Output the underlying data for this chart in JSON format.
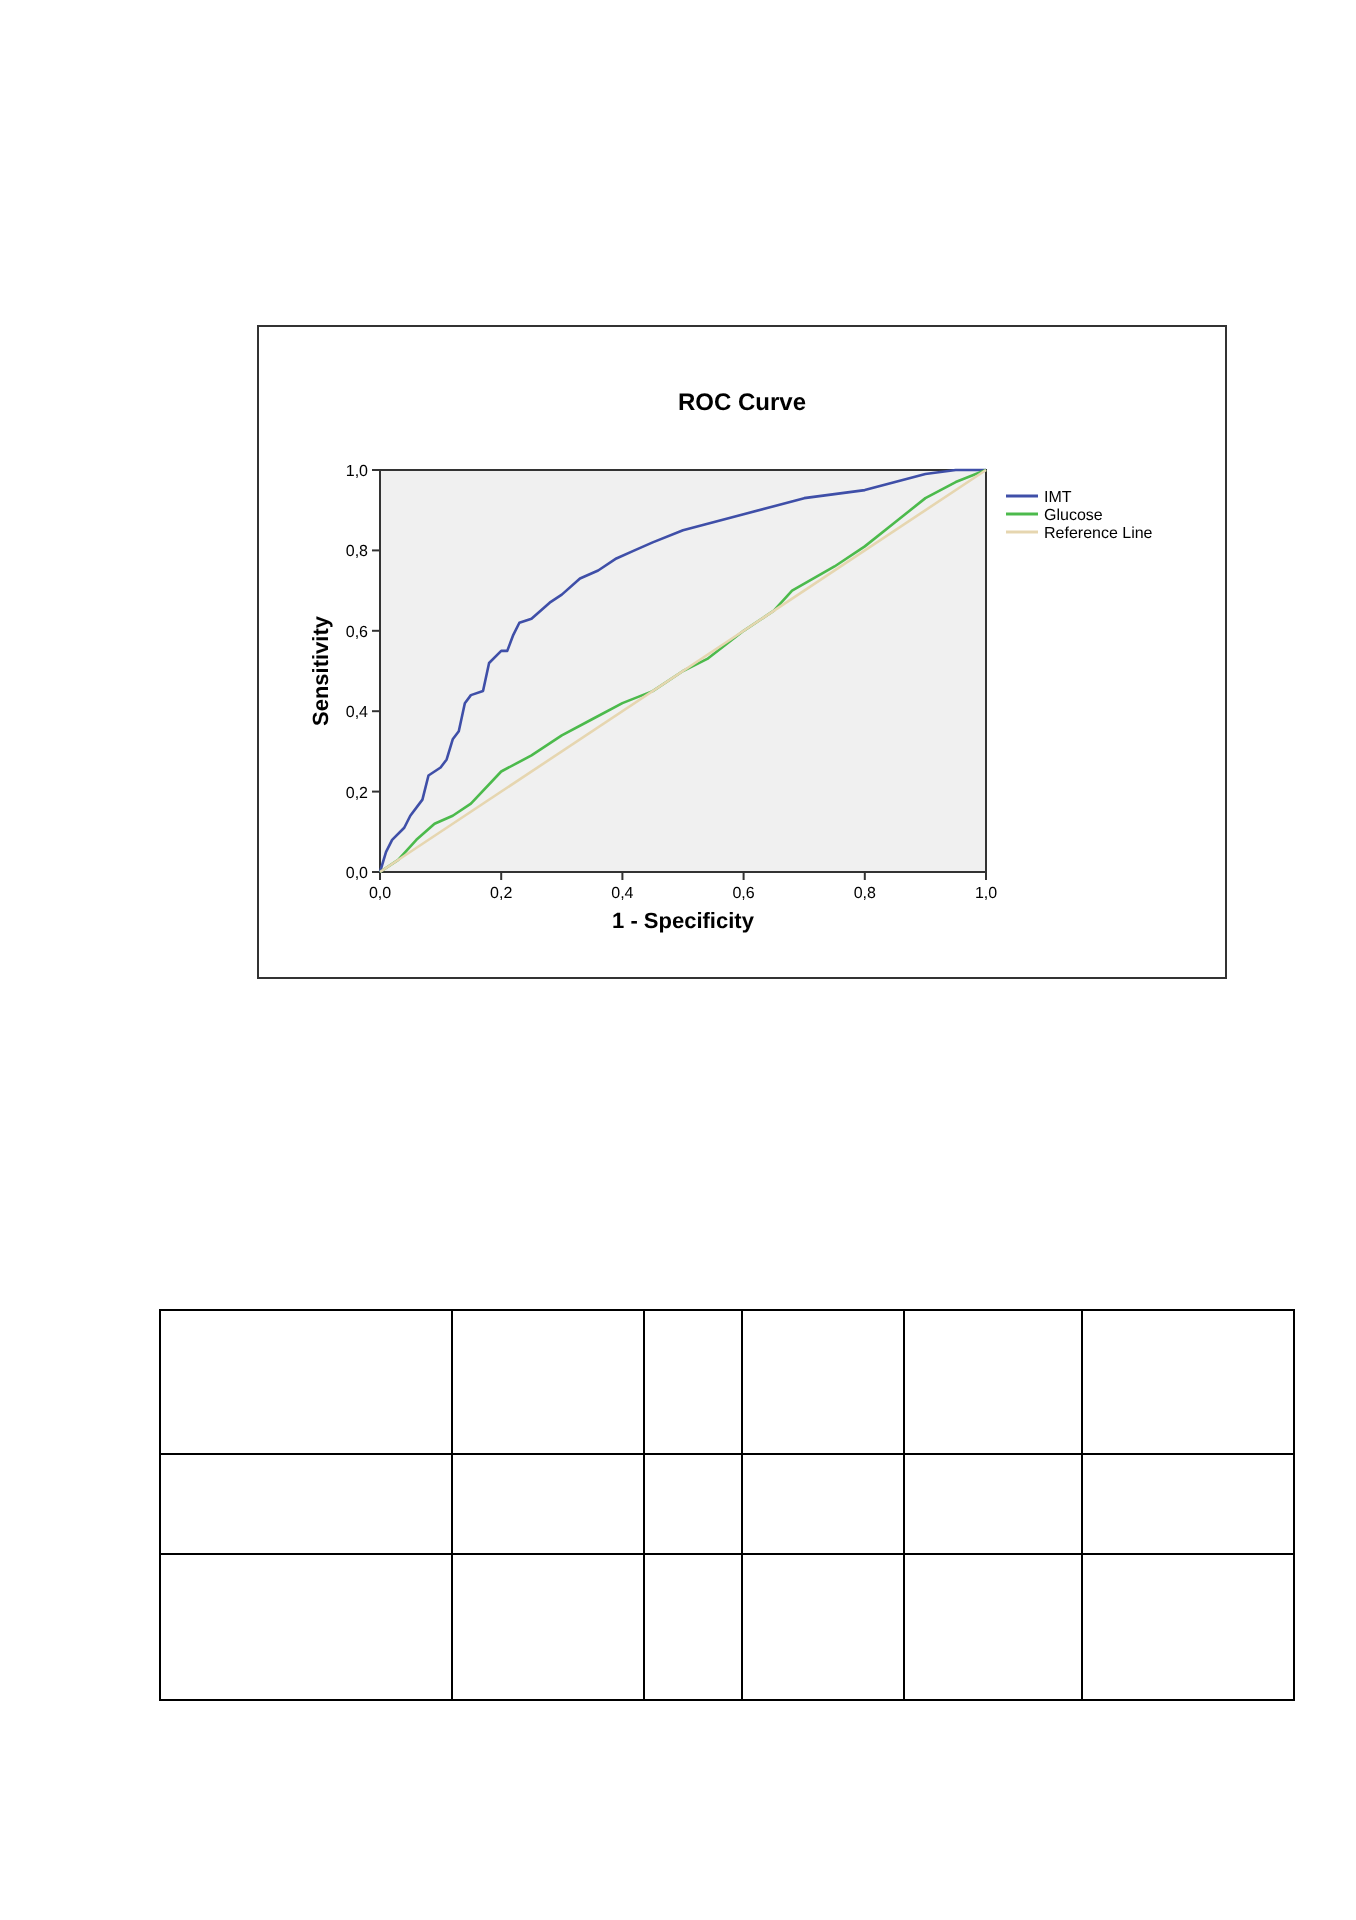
{
  "chart_data": {
    "type": "line",
    "title": "ROC Curve",
    "xlabel": "1 - Specificity",
    "ylabel": "Sensitivity",
    "xlim": [
      0,
      1
    ],
    "ylim": [
      0,
      1
    ],
    "xticks": [
      {
        "value": 0,
        "label": "0,0"
      },
      {
        "value": 0.2,
        "label": "0,2"
      },
      {
        "value": 0.4,
        "label": "0,4"
      },
      {
        "value": 0.6,
        "label": "0,6"
      },
      {
        "value": 0.8,
        "label": "0,8"
      },
      {
        "value": 1,
        "label": "1,0"
      }
    ],
    "yticks": [
      {
        "value": 0,
        "label": "0,0"
      },
      {
        "value": 0.2,
        "label": "0,2"
      },
      {
        "value": 0.4,
        "label": "0,4"
      },
      {
        "value": 0.6,
        "label": "0,6"
      },
      {
        "value": 0.8,
        "label": "0,8"
      },
      {
        "value": 1,
        "label": "1,0"
      }
    ],
    "legend": "right",
    "grid": false,
    "marker": "none",
    "series": [
      {
        "name": "IMT",
        "color": "#3f4fa8",
        "x": [
          0,
          0.01,
          0.02,
          0.04,
          0.05,
          0.07,
          0.08,
          0.1,
          0.11,
          0.12,
          0.13,
          0.14,
          0.15,
          0.17,
          0.18,
          0.2,
          0.21,
          0.22,
          0.23,
          0.25,
          0.28,
          0.3,
          0.33,
          0.36,
          0.39,
          0.42,
          0.45,
          0.5,
          0.55,
          0.6,
          0.65,
          0.7,
          0.75,
          0.8,
          0.85,
          0.9,
          0.95,
          1
        ],
        "values": [
          0,
          0.05,
          0.08,
          0.11,
          0.14,
          0.18,
          0.24,
          0.26,
          0.28,
          0.33,
          0.35,
          0.42,
          0.44,
          0.45,
          0.52,
          0.55,
          0.55,
          0.59,
          0.62,
          0.63,
          0.67,
          0.69,
          0.73,
          0.75,
          0.78,
          0.8,
          0.82,
          0.85,
          0.87,
          0.89,
          0.91,
          0.93,
          0.94,
          0.95,
          0.97,
          0.99,
          1,
          1
        ]
      },
      {
        "name": "Glucose",
        "color": "#4cba4c",
        "x": [
          0,
          0.03,
          0.06,
          0.09,
          0.12,
          0.15,
          0.2,
          0.25,
          0.3,
          0.35,
          0.4,
          0.45,
          0.5,
          0.54,
          0.6,
          0.65,
          0.68,
          0.75,
          0.8,
          0.85,
          0.9,
          0.95,
          1
        ],
        "values": [
          0,
          0.03,
          0.08,
          0.12,
          0.14,
          0.17,
          0.25,
          0.29,
          0.34,
          0.38,
          0.42,
          0.45,
          0.5,
          0.53,
          0.6,
          0.65,
          0.7,
          0.76,
          0.81,
          0.87,
          0.93,
          0.97,
          1
        ]
      },
      {
        "name": "Reference Line",
        "color": "#e6d6b0",
        "x": [
          0,
          1
        ],
        "values": [
          0,
          1
        ]
      }
    ]
  }
}
